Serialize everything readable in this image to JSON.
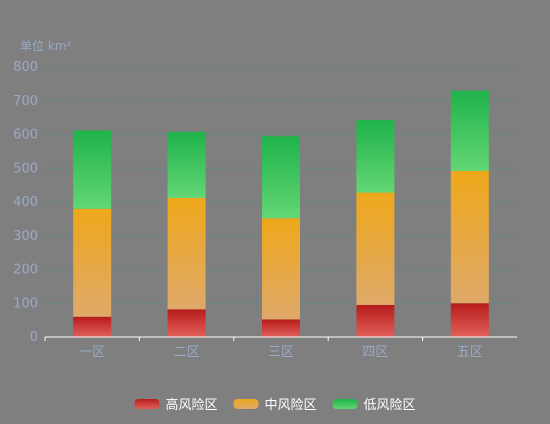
{
  "chart_data": {
    "type": "bar",
    "stacked": true,
    "unit_label": "单位 km²",
    "categories": [
      "一区",
      "二区",
      "三区",
      "四区",
      "五区"
    ],
    "series": [
      {
        "name": "高风险区",
        "values": [
          60,
          82,
          52,
          95,
          100
        ],
        "color_top": "#b71c1c",
        "color_bottom": "#e0605a"
      },
      {
        "name": "中风险区",
        "values": [
          320,
          330,
          300,
          333,
          392
        ],
        "color_top": "#eea81a",
        "color_bottom": "#dfa96a"
      },
      {
        "name": "低风险区",
        "values": [
          232,
          196,
          243,
          215,
          238
        ],
        "color_top": "#1fb34a",
        "color_bottom": "#63d675"
      }
    ],
    "ylim": [
      0,
      800
    ],
    "yticks": [
      0,
      100,
      200,
      300,
      400,
      500,
      600,
      700,
      800
    ],
    "grid": true,
    "legend_position": "bottom"
  }
}
